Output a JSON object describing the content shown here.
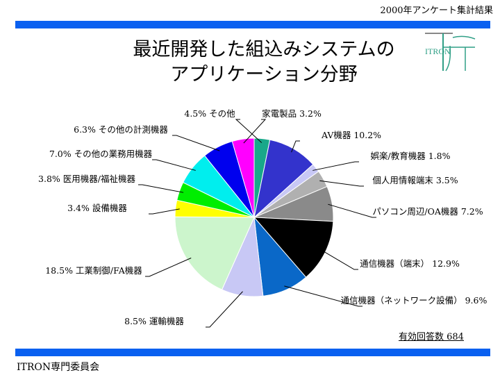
{
  "header_note": "2000年アンケート集計結果",
  "title_lines": [
    "最近開発した組込みシステムの",
    "アプリケーション分野"
  ],
  "logo_text": "ITRON",
  "footer": "ITRON専門委員会",
  "response_count": "有効回答数 684",
  "colors": {
    "accent_bar": "#0a60f0",
    "logo": "#2f9f86"
  },
  "chart_data": {
    "type": "pie",
    "title": "最近開発した組込みシステムのアプリケーション分野",
    "unit": "%",
    "slices": [
      {
        "name": "家電製品",
        "label": "家電製品 3.2%",
        "value": 3.2,
        "color": "#19a88a"
      },
      {
        "name": "AV機器",
        "label": "AV機器 10.2%",
        "value": 10.2,
        "color": "#3333cc"
      },
      {
        "name": "娯楽/教育機器",
        "label": "娯楽/教育機器 1.8%",
        "value": 1.8,
        "color": "#c8c8f5"
      },
      {
        "name": "個人用情報端末",
        "label": "個人用情報端末 3.5%",
        "value": 3.5,
        "color": "#b0b0b0"
      },
      {
        "name": "パソコン周辺/OA機器",
        "label": "パソコン周辺/OA機器 7.2%",
        "value": 7.2,
        "color": "#8a8a8a"
      },
      {
        "name": "通信機器（端末）",
        "label": "通信機器（端末） 12.9%",
        "value": 12.9,
        "color": "#000000"
      },
      {
        "name": "通信機器（ネットワーク設備）",
        "label": "通信機器（ネットワーク設備） 9.6%",
        "value": 9.6,
        "color": "#0a68c8"
      },
      {
        "name": "運輸機器",
        "label": "8.5% 運輸機器",
        "value": 8.5,
        "color": "#c8c8f5"
      },
      {
        "name": "工業制御/FA機器",
        "label": "18.5% 工業制御/FA機器",
        "value": 18.5,
        "color": "#ccf5cc"
      },
      {
        "name": "設備機器",
        "label": "3.4% 設備機器",
        "value": 3.4,
        "color": "#ffff00"
      },
      {
        "name": "医用機器/福祉機器",
        "label": "3.8% 医用機器/福祉機器",
        "value": 3.8,
        "color": "#00ee00"
      },
      {
        "name": "その他の業務用機器",
        "label": "7.0% その他の業務用機器",
        "value": 7.0,
        "color": "#00eeee"
      },
      {
        "name": "その他の計測機器",
        "label": "6.3% その他の計測機器",
        "value": 6.3,
        "color": "#0000ee"
      },
      {
        "name": "その他",
        "label": "4.5% その他",
        "value": 4.5,
        "color": "#ff00ff"
      }
    ]
  }
}
